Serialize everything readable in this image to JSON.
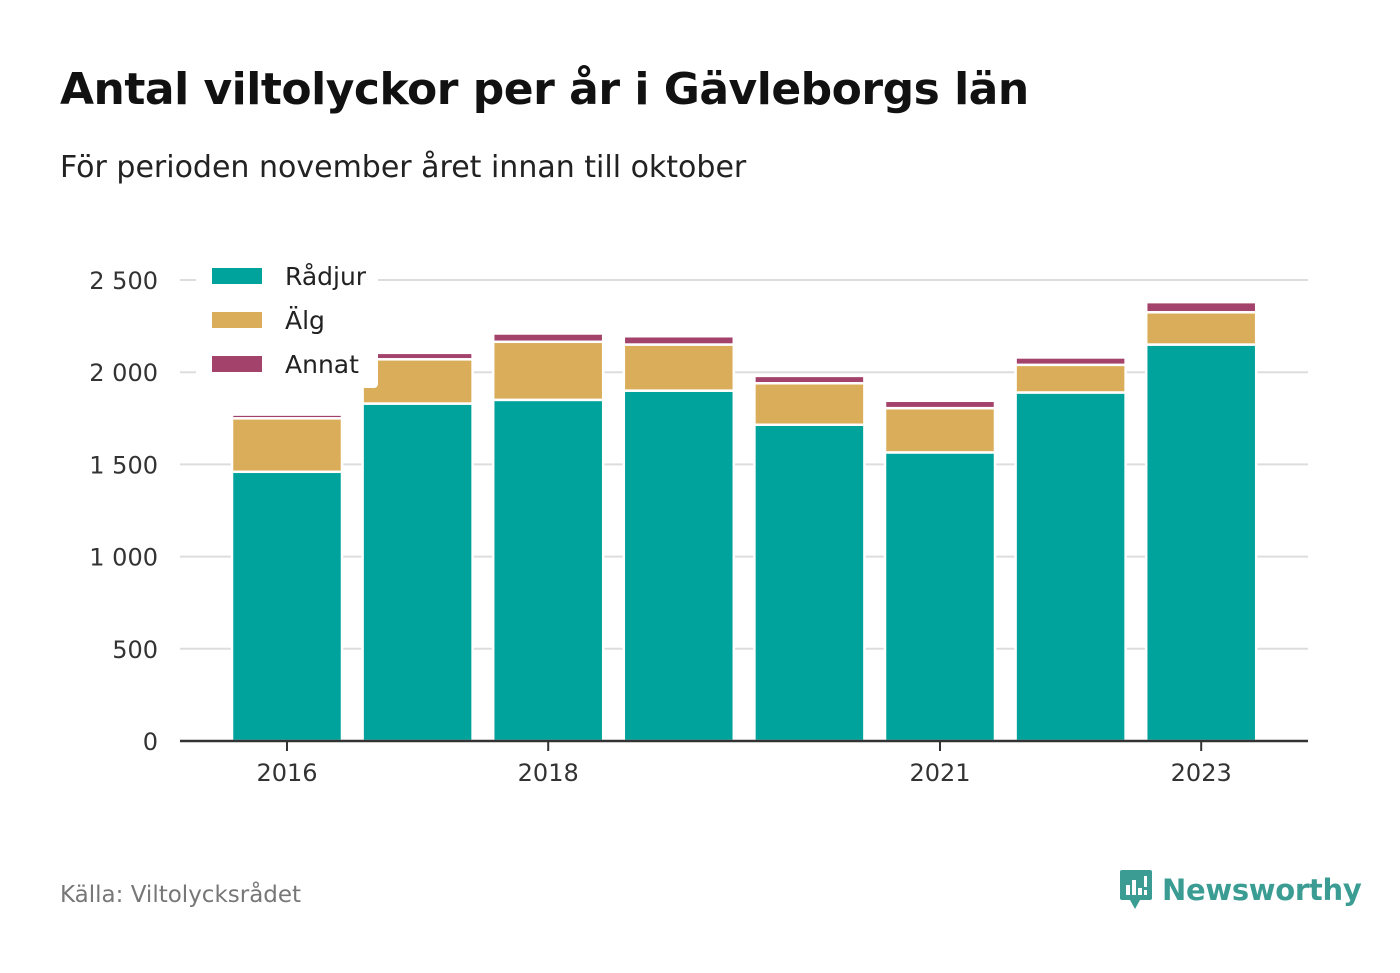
{
  "header": {
    "title": "Antal viltolyckor per år i Gävleborgs län",
    "subtitle": "För perioden november året innan till oktober"
  },
  "footer": {
    "source": "Källa: Viltolycksrådet",
    "brand": "Newsworthy"
  },
  "colors": {
    "radjur": "#00a39b",
    "alg": "#daad5a",
    "annat": "#a3426a",
    "grid": "#dddddd",
    "axis": "#333333",
    "brand": "#3a9c92"
  },
  "chart_data": {
    "type": "bar",
    "stacked": true,
    "categories": [
      "2016",
      "2017",
      "2018",
      "2019",
      "2020",
      "2021",
      "2022",
      "2023"
    ],
    "x_tick_labels": [
      "2016",
      "",
      "2018",
      "",
      "",
      "2021",
      "",
      "2023"
    ],
    "series": [
      {
        "name": "Rådjur",
        "color": "#00a39b",
        "values": [
          1460,
          1830,
          1850,
          1900,
          1715,
          1565,
          1890,
          2150
        ]
      },
      {
        "name": "Älg",
        "color": "#daad5a",
        "values": [
          290,
          240,
          315,
          250,
          225,
          240,
          150,
          175
        ]
      },
      {
        "name": "Annat",
        "color": "#a3426a",
        "values": [
          20,
          35,
          45,
          45,
          40,
          40,
          40,
          55
        ]
      }
    ],
    "y_ticks": [
      0,
      500,
      1000,
      1500,
      2000,
      2500
    ],
    "y_tick_labels": [
      "0",
      "500",
      "1 000",
      "1 500",
      "2 000",
      "2 500"
    ],
    "ylim": [
      0,
      2500
    ],
    "grid": true,
    "legend_position": "top-left"
  }
}
